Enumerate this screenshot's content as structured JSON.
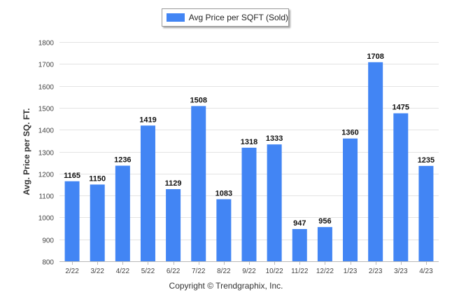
{
  "chart_data": {
    "type": "bar",
    "categories": [
      "2/22",
      "3/22",
      "4/22",
      "5/22",
      "6/22",
      "7/22",
      "8/22",
      "9/22",
      "10/22",
      "11/22",
      "12/22",
      "1/23",
      "2/23",
      "3/23",
      "4/23"
    ],
    "series": [
      {
        "name": "Avg Price per SQFT (Sold)",
        "values": [
          1165,
          1150,
          1236,
          1419,
          1129,
          1508,
          1083,
          1318,
          1333,
          947,
          956,
          1360,
          1708,
          1475,
          1235
        ]
      }
    ],
    "ylabel": "Avg. Price per SQ. FT.",
    "xlabel": "",
    "ylim": [
      800,
      1800
    ],
    "yticks": [
      800,
      900,
      1000,
      1100,
      1200,
      1300,
      1400,
      1500,
      1600,
      1700,
      1800
    ],
    "grid": true,
    "legend": "top-center",
    "bar_color": "#4285f4"
  },
  "footer": {
    "copyright": "Copyright © Trendgraphix, Inc."
  }
}
